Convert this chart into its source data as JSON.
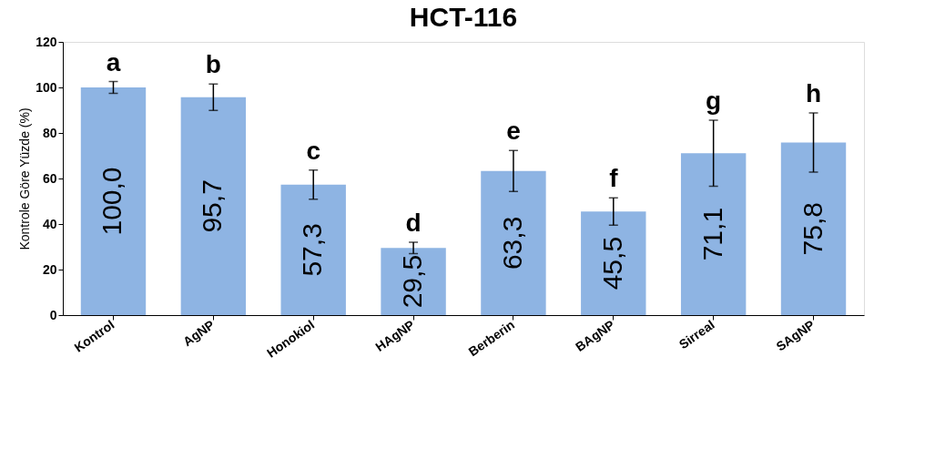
{
  "chart_data": {
    "type": "bar",
    "title": "HCT-116",
    "ylabel": "Kontrole Göre Yüzde (%)",
    "categories": [
      "Kontrol",
      "AgNP",
      "Honokiol",
      "HAgNP",
      "Berberin",
      "BAgNP",
      "Sirreal",
      "SAgNP"
    ],
    "values": [
      100.0,
      95.7,
      57.3,
      29.5,
      63.3,
      45.5,
      71.1,
      75.8
    ],
    "value_labels": [
      "100,0",
      "95,7",
      "57,3",
      "29,5",
      "63,3",
      "45,5",
      "71,1",
      "75,8"
    ],
    "errors": [
      2.6,
      5.8,
      6.4,
      2.5,
      9,
      6,
      14.5,
      13
    ],
    "color": "#8eb4e3",
    "ylim": [
      0,
      120
    ],
    "yticks": [
      0,
      20,
      40,
      60,
      80,
      100,
      120
    ],
    "grid": false,
    "annotations": [
      "a",
      "b",
      "c",
      "d",
      "e",
      "f",
      "g",
      "h"
    ]
  }
}
